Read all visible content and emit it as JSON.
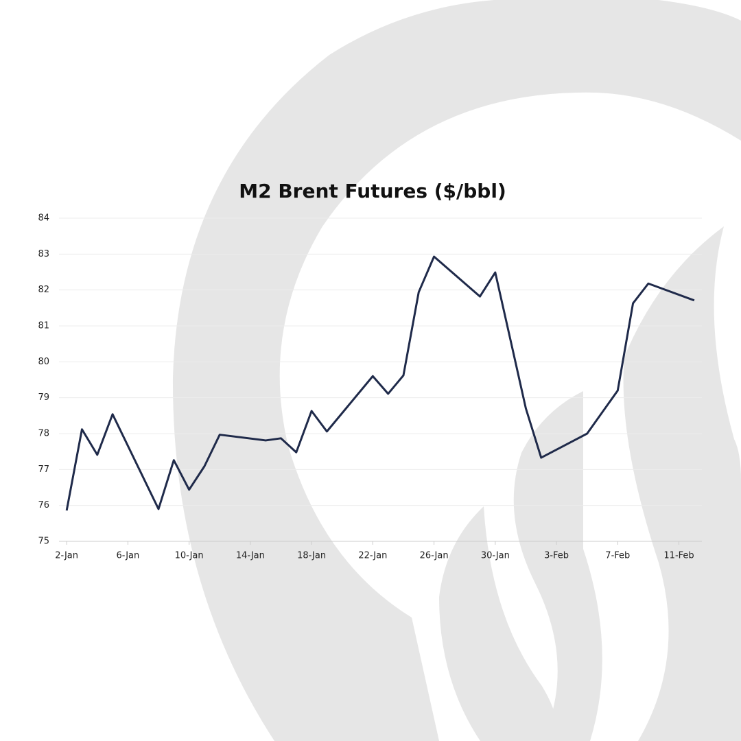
{
  "chart_data": {
    "type": "line",
    "title": "M2 Brent Futures ($/bbl)",
    "x": [
      2,
      3,
      4,
      5,
      8,
      9,
      10,
      11,
      12,
      15,
      16,
      17,
      18,
      19,
      22,
      23,
      24,
      25,
      26,
      29,
      30,
      31,
      32,
      33,
      36,
      38,
      39,
      40,
      43
    ],
    "series": [
      {
        "name": "M2 Brent",
        "color": "#1f2a4a",
        "values": [
          75.86,
          78.12,
          77.41,
          78.54,
          75.9,
          77.26,
          76.44,
          77.09,
          77.97,
          77.81,
          77.87,
          77.48,
          78.63,
          78.06,
          79.6,
          79.11,
          79.62,
          81.94,
          82.93,
          81.82,
          82.49,
          80.6,
          78.7,
          77.33,
          78.0,
          79.2,
          81.63,
          82.18,
          81.71
        ]
      }
    ],
    "xlim": [
      1.5,
      43.5
    ],
    "xticks": [
      {
        "value": 2,
        "label": "2-Jan"
      },
      {
        "value": 6,
        "label": "6-Jan"
      },
      {
        "value": 10,
        "label": "10-Jan"
      },
      {
        "value": 14,
        "label": "14-Jan"
      },
      {
        "value": 18,
        "label": "18-Jan"
      },
      {
        "value": 22,
        "label": "22-Jan"
      },
      {
        "value": 26,
        "label": "26-Jan"
      },
      {
        "value": 30,
        "label": "30-Jan"
      },
      {
        "value": 34,
        "label": "3-Feb"
      },
      {
        "value": 38,
        "label": "7-Feb"
      },
      {
        "value": 42,
        "label": "11-Feb"
      }
    ],
    "ylim": [
      75,
      84
    ],
    "yticks": [
      75,
      76,
      77,
      78,
      79,
      80,
      81,
      82,
      83,
      84
    ],
    "grid": true
  }
}
